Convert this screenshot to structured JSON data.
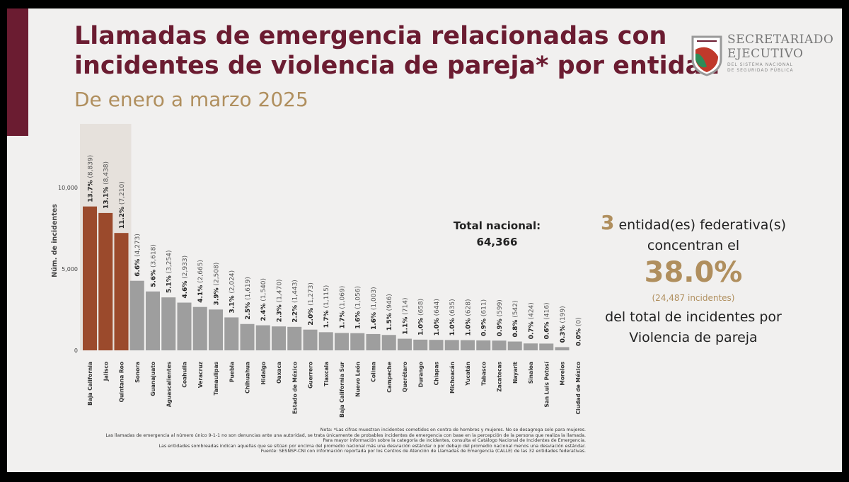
{
  "header": {
    "title_line1": "Llamadas de emergencia relacionadas  con",
    "title_line2": "incidentes de violencia de pareja* por entidad",
    "subtitle": "De enero a marzo 2025"
  },
  "logo": {
    "line1": "SECRETARIADO",
    "line2": "EJECUTIVO",
    "line3": "DEL SISTEMA NACIONAL",
    "line4": "DE SEGURIDAD PÚBLICA"
  },
  "colors": {
    "highlight_bar": "#9b4a2c",
    "normal_bar": "#9e9e9e",
    "highlight_band": "#e6e1dc",
    "brand": "#6b1c31",
    "accent": "#b08f5e"
  },
  "total": {
    "label": "Total nacional:",
    "value": "64,366"
  },
  "summary": {
    "count": "3",
    "line1": " entidad(es) federativa(s)",
    "line2": "concentran el",
    "percent": "38.0%",
    "incidents": "(24,487 incidentes)",
    "line3": "del total de incidentes por",
    "line4": "Violencia de pareja"
  },
  "notes": [
    "Nota: *Las cifras muestran incidentes cometidos en contra de hombres y mujeres. No se desagrega solo para mujeres.",
    "Las llamadas de emergencia al número único 9-1-1 no son denuncias ante una autoridad, se trata únicamente de probables incidentes de emergencia con base en la percepción de la persona que realiza la llamada.",
    "Para mayor información sobre la categoría de incidentes, consulta el Catálogo Nacional de Incidentes de Emergencia.",
    "Las entidades sombreadas indican aquellas que se sitúan por encima del promedio nacional más una desviación estándar o por debajo del promedio nacional menos una desviación estándar.",
    "Fuente: SESNSP-CNI con información reportada por los Centros de Atención de Llamadas de Emergencia (CALLE) de las 32 entidades federativas."
  ],
  "chart_data": {
    "type": "bar",
    "title": "",
    "xlabel": "",
    "ylabel": "Núm. de incidentes",
    "ylim": [
      0,
      10000
    ],
    "yticks": [
      0,
      5000,
      10000
    ],
    "ytick_labels": [
      "0",
      "5,000",
      "10,000"
    ],
    "grid": false,
    "categories": [
      "Baja California",
      "Jalisco",
      "Quintana Roo",
      "Sonora",
      "Guanajuato",
      "Aguascalientes",
      "Coahuila",
      "Veracruz",
      "Tamaulipas",
      "Puebla",
      "Chihuahua",
      "Hidalgo",
      "Oaxaca",
      "Estado de México",
      "Guerrero",
      "Tlaxcala",
      "Baja California Sur",
      "Nuevo León",
      "Colima",
      "Campeche",
      "Querétaro",
      "Durango",
      "Chiapas",
      "Michoacán",
      "Yucatán",
      "Tabasco",
      "Zacatecas",
      "Nayarit",
      "Sinaloa",
      "San Luis Potosí",
      "Morelos",
      "Ciudad de México"
    ],
    "values": [
      8839,
      8438,
      7210,
      4273,
      3618,
      3254,
      2933,
      2665,
      2508,
      2024,
      1619,
      1540,
      1470,
      1443,
      1273,
      1115,
      1069,
      1056,
      1003,
      946,
      714,
      658,
      644,
      635,
      628,
      611,
      599,
      542,
      424,
      416,
      199,
      0
    ],
    "percent_labels": [
      "13.7%",
      "13.1%",
      "11.2%",
      "6.6%",
      "5.6%",
      "5.1%",
      "4.6%",
      "4.1%",
      "3.9%",
      "3.1%",
      "2.5%",
      "2.4%",
      "2.3%",
      "2.2%",
      "2.0%",
      "1.7%",
      "1.7%",
      "1.6%",
      "1.6%",
      "1.5%",
      "1.1%",
      "1.0%",
      "1.0%",
      "1.0%",
      "1.0%",
      "0.9%",
      "0.9%",
      "0.8%",
      "0.7%",
      "0.6%",
      "0.3%",
      "0.0%"
    ],
    "count_labels": [
      "(8,839)",
      "(8,438)",
      "(7,210)",
      "(4,273)",
      "(3,618)",
      "(3,254)",
      "(2,933)",
      "(2,665)",
      "(2,508)",
      "(2,024)",
      "(1,619)",
      "(1,540)",
      "(1,470)",
      "(1,443)",
      "(1,273)",
      "(1,115)",
      "(1,069)",
      "(1,056)",
      "(1,003)",
      "(946)",
      "(714)",
      "(658)",
      "(644)",
      "(635)",
      "(628)",
      "(611)",
      "(599)",
      "(542)",
      "(424)",
      "(416)",
      "(199)",
      "(0)"
    ],
    "highlighted": [
      "Baja California",
      "Jalisco",
      "Quintana Roo"
    ]
  }
}
